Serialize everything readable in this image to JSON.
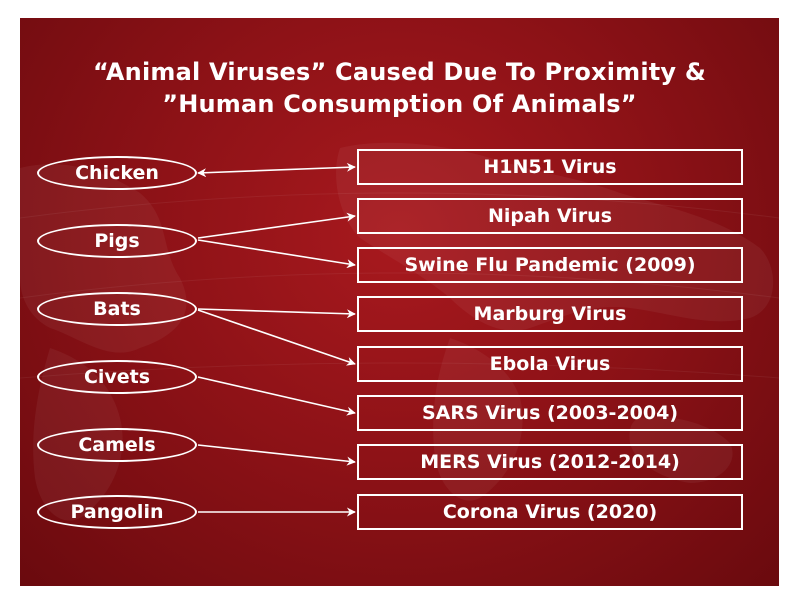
{
  "title": {
    "line1": "“Animal Viruses” Caused Due To Proximity &",
    "line2": "”Human Consumption Of Animals”"
  },
  "animals": [
    "Chicken",
    "Pigs",
    "Bats",
    "Civets",
    "Camels",
    "Pangolin"
  ],
  "viruses": [
    "H1N51 Virus",
    "Nipah Virus",
    "Swine Flu Pandemic (2009)",
    "Marburg Virus",
    "Ebola Virus",
    "SARS Virus (2003-2004)",
    "MERS Virus (2012-2014)",
    "Corona Virus (2020)"
  ],
  "links": [
    {
      "from": "Chicken",
      "to": "H1N51 Virus",
      "bidirectional": true
    },
    {
      "from": "Pigs",
      "to": "Nipah Virus",
      "bidirectional": false
    },
    {
      "from": "Pigs",
      "to": "Swine Flu Pandemic (2009)",
      "bidirectional": false
    },
    {
      "from": "Bats",
      "to": "Marburg Virus",
      "bidirectional": false
    },
    {
      "from": "Bats",
      "to": "Ebola Virus",
      "bidirectional": false
    },
    {
      "from": "Civets",
      "to": "SARS Virus (2003-2004)",
      "bidirectional": false
    },
    {
      "from": "Camels",
      "to": "MERS Virus (2012-2014)",
      "bidirectional": false
    },
    {
      "from": "Pangolin",
      "to": "Corona Virus (2020)",
      "bidirectional": false
    }
  ],
  "colors": {
    "background": "#8e1217",
    "foreground": "#ffffff"
  }
}
